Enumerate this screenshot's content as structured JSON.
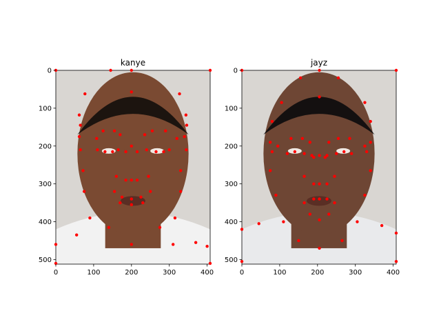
{
  "figure": {
    "background": "#ffffff",
    "point_color": "#ff0000",
    "axis_color": "#000000"
  },
  "chart_data": [
    {
      "type": "scatter",
      "title": "kanye",
      "image_content": "portrait photo of a man (face) used as background image",
      "xlim": [
        0,
        408
      ],
      "ylim": [
        512,
        0
      ],
      "xticks": [
        0,
        100,
        200,
        300,
        400
      ],
      "yticks": [
        0,
        100,
        200,
        300,
        400,
        500
      ],
      "grid": false,
      "points": [
        [
          0,
          0
        ],
        [
          145,
          0
        ],
        [
          200,
          0
        ],
        [
          408,
          0
        ],
        [
          77,
          62
        ],
        [
          200,
          57
        ],
        [
          327,
          62
        ],
        [
          62,
          118
        ],
        [
          344,
          118
        ],
        [
          65,
          145
        ],
        [
          346,
          145
        ],
        [
          62,
          175
        ],
        [
          108,
          180
        ],
        [
          125,
          160
        ],
        [
          155,
          160
        ],
        [
          170,
          170
        ],
        [
          235,
          170
        ],
        [
          255,
          160
        ],
        [
          290,
          160
        ],
        [
          320,
          180
        ],
        [
          340,
          175
        ],
        [
          65,
          210
        ],
        [
          110,
          210
        ],
        [
          130,
          215
        ],
        [
          150,
          215
        ],
        [
          165,
          210
        ],
        [
          185,
          215
        ],
        [
          215,
          215
        ],
        [
          240,
          210
        ],
        [
          265,
          215
        ],
        [
          285,
          215
        ],
        [
          300,
          210
        ],
        [
          345,
          210
        ],
        [
          200,
          200
        ],
        [
          72,
          265
        ],
        [
          330,
          265
        ],
        [
          75,
          320
        ],
        [
          330,
          320
        ],
        [
          160,
          280
        ],
        [
          185,
          290
        ],
        [
          200,
          290
        ],
        [
          215,
          290
        ],
        [
          245,
          280
        ],
        [
          155,
          320
        ],
        [
          175,
          335
        ],
        [
          200,
          340
        ],
        [
          225,
          335
        ],
        [
          250,
          320
        ],
        [
          170,
          350
        ],
        [
          200,
          355
        ],
        [
          230,
          350
        ],
        [
          90,
          390
        ],
        [
          140,
          415
        ],
        [
          200,
          460
        ],
        [
          275,
          415
        ],
        [
          315,
          390
        ],
        [
          55,
          435
        ],
        [
          0,
          460
        ],
        [
          310,
          460
        ],
        [
          370,
          455
        ],
        [
          400,
          465
        ],
        [
          0,
          510
        ],
        [
          408,
          510
        ]
      ]
    },
    {
      "type": "scatter",
      "title": "jayz",
      "image_content": "portrait photo of a man (face) used as background image",
      "xlim": [
        0,
        408
      ],
      "ylim": [
        512,
        0
      ],
      "xticks": [
        0,
        100,
        200,
        300,
        400
      ],
      "yticks": [
        0,
        100,
        200,
        300,
        400,
        500
      ],
      "grid": false,
      "points": [
        [
          0,
          0
        ],
        [
          205,
          0
        ],
        [
          408,
          0
        ],
        [
          105,
          85
        ],
        [
          155,
          20
        ],
        [
          205,
          70
        ],
        [
          255,
          20
        ],
        [
          325,
          85
        ],
        [
          80,
          135
        ],
        [
          340,
          135
        ],
        [
          75,
          190
        ],
        [
          95,
          200
        ],
        [
          130,
          180
        ],
        [
          160,
          180
        ],
        [
          180,
          190
        ],
        [
          230,
          190
        ],
        [
          255,
          180
        ],
        [
          285,
          180
        ],
        [
          325,
          200
        ],
        [
          340,
          190
        ],
        [
          80,
          215
        ],
        [
          120,
          220
        ],
        [
          140,
          215
        ],
        [
          165,
          220
        ],
        [
          185,
          225
        ],
        [
          225,
          225
        ],
        [
          250,
          220
        ],
        [
          270,
          215
        ],
        [
          290,
          220
        ],
        [
          330,
          215
        ],
        [
          190,
          230
        ],
        [
          205,
          225
        ],
        [
          220,
          230
        ],
        [
          75,
          265
        ],
        [
          340,
          265
        ],
        [
          90,
          330
        ],
        [
          325,
          330
        ],
        [
          165,
          280
        ],
        [
          190,
          300
        ],
        [
          205,
          300
        ],
        [
          225,
          300
        ],
        [
          245,
          280
        ],
        [
          165,
          350
        ],
        [
          190,
          340
        ],
        [
          205,
          340
        ],
        [
          225,
          340
        ],
        [
          245,
          350
        ],
        [
          180,
          380
        ],
        [
          205,
          395
        ],
        [
          230,
          380
        ],
        [
          110,
          400
        ],
        [
          150,
          450
        ],
        [
          205,
          470
        ],
        [
          265,
          450
        ],
        [
          305,
          400
        ],
        [
          0,
          420
        ],
        [
          45,
          405
        ],
        [
          370,
          410
        ],
        [
          408,
          430
        ],
        [
          0,
          505
        ],
        [
          408,
          505
        ]
      ]
    }
  ]
}
